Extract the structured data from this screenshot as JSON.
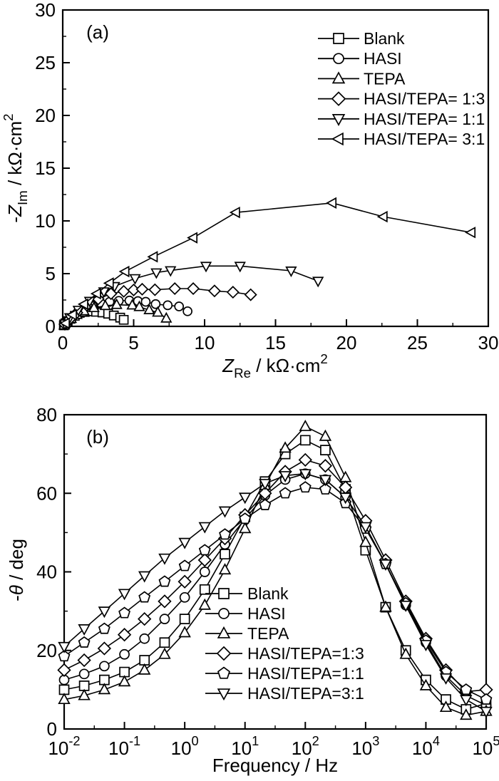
{
  "page": {
    "background": "#ffffff",
    "ink": "#000000"
  },
  "chart_data": [
    {
      "id": "panel-a",
      "type": "scatter",
      "panel_label": "(a)",
      "xlabel_parts": [
        {
          "text": "Z",
          "italic": true
        },
        {
          "text": "Re",
          "script": "sub"
        },
        {
          "text": " / kΩ·cm"
        },
        {
          "text": "2",
          "script": "sup"
        }
      ],
      "ylabel_parts": [
        {
          "text": "-"
        },
        {
          "text": "Z",
          "italic": true
        },
        {
          "text": "Im",
          "script": "sub"
        },
        {
          "text": " / kΩ·cm"
        },
        {
          "text": "2",
          "script": "sup"
        }
      ],
      "x_axis": {
        "scale": "linear",
        "min": 0,
        "max": 30,
        "major_ticks": [
          0,
          5,
          10,
          15,
          20,
          25,
          30
        ],
        "minor_ticks": [
          2.5,
          7.5,
          12.5,
          17.5,
          22.5,
          27.5
        ],
        "tick_labels": [
          "0",
          "5",
          "10",
          "15",
          "20",
          "25",
          "30"
        ]
      },
      "y_axis": {
        "scale": "linear",
        "min": 0,
        "max": 30,
        "major_ticks": [
          0,
          5,
          10,
          15,
          20,
          25,
          30
        ],
        "minor_ticks": [
          2.5,
          7.5,
          12.5,
          17.5,
          22.5,
          27.5
        ],
        "tick_labels": [
          "0",
          "5",
          "10",
          "15",
          "20",
          "25",
          "30"
        ]
      },
      "legend": [
        {
          "label": "Blank",
          "marker": "square"
        },
        {
          "label": "HASI",
          "marker": "circle"
        },
        {
          "label": "TEPA",
          "marker": "triangle-up"
        },
        {
          "label": "HASI/TEPA= 1:3",
          "marker": "diamond"
        },
        {
          "label": "HASI/TEPA= 1:1",
          "marker": "triangle-down"
        },
        {
          "label": "HASI/TEPA= 3:1",
          "marker": "triangle-left"
        }
      ],
      "series": [
        {
          "name": "Blank",
          "marker": "square",
          "points": [
            [
              0.08,
              0.1
            ],
            [
              0.2,
              0.3
            ],
            [
              0.35,
              0.5
            ],
            [
              0.55,
              0.72
            ],
            [
              0.85,
              1.0
            ],
            [
              1.2,
              1.28
            ],
            [
              1.55,
              1.37
            ],
            [
              1.95,
              1.42
            ],
            [
              2.35,
              1.38
            ],
            [
              2.8,
              1.32
            ],
            [
              3.2,
              1.2
            ],
            [
              3.6,
              1.03
            ],
            [
              4.05,
              0.83
            ],
            [
              4.3,
              0.62
            ]
          ]
        },
        {
          "name": "HASI",
          "marker": "circle",
          "points": [
            [
              0.1,
              0.12
            ],
            [
              0.3,
              0.45
            ],
            [
              0.6,
              0.85
            ],
            [
              1.0,
              1.25
            ],
            [
              1.5,
              1.62
            ],
            [
              2.1,
              1.95
            ],
            [
              2.7,
              2.18
            ],
            [
              3.3,
              2.32
            ],
            [
              3.95,
              2.42
            ],
            [
              4.7,
              2.45
            ],
            [
              5.3,
              2.4
            ],
            [
              5.85,
              2.33
            ],
            [
              6.55,
              2.11
            ],
            [
              7.4,
              2.0
            ],
            [
              8.2,
              1.89
            ],
            [
              8.8,
              1.43
            ]
          ]
        },
        {
          "name": "TEPA",
          "marker": "triangle-up",
          "points": [
            [
              0.1,
              0.1
            ],
            [
              0.3,
              0.38
            ],
            [
              0.6,
              0.72
            ],
            [
              1.0,
              1.1
            ],
            [
              1.5,
              1.45
            ],
            [
              2.2,
              1.75
            ],
            [
              3.0,
              1.95
            ],
            [
              3.8,
              2.05
            ],
            [
              4.9,
              2.0
            ],
            [
              5.4,
              1.85
            ],
            [
              6.1,
              1.55
            ],
            [
              6.7,
              1.32
            ],
            [
              7.3,
              0.76
            ]
          ]
        },
        {
          "name": "HASI/TEPA= 1:3",
          "marker": "diamond",
          "points": [
            [
              0.15,
              0.2
            ],
            [
              0.5,
              0.7
            ],
            [
              1.0,
              1.3
            ],
            [
              1.7,
              2.0
            ],
            [
              2.5,
              2.6
            ],
            [
              3.4,
              3.1
            ],
            [
              4.3,
              3.32
            ],
            [
              5.0,
              3.45
            ],
            [
              5.6,
              3.52
            ],
            [
              6.5,
              3.47
            ],
            [
              7.9,
              3.58
            ],
            [
              9.2,
              3.58
            ],
            [
              10.7,
              3.36
            ],
            [
              12.0,
              3.24
            ],
            [
              13.25,
              3.0
            ]
          ]
        },
        {
          "name": "HASI/TEPA= 1:1",
          "marker": "triangle-down",
          "points": [
            [
              0.15,
              0.25
            ],
            [
              0.5,
              0.85
            ],
            [
              1.1,
              1.55
            ],
            [
              1.9,
              2.4
            ],
            [
              2.9,
              3.3
            ],
            [
              3.65,
              3.8
            ],
            [
              5.1,
              4.55
            ],
            [
              6.6,
              5.1
            ],
            [
              7.6,
              5.3
            ],
            [
              10.1,
              5.72
            ],
            [
              12.5,
              5.72
            ],
            [
              16.1,
              5.27
            ],
            [
              18.0,
              4.3
            ]
          ]
        },
        {
          "name": "HASI/TEPA= 3:1",
          "marker": "triangle-left",
          "points": [
            [
              0.2,
              0.3
            ],
            [
              0.7,
              1.1
            ],
            [
              1.5,
              2.1
            ],
            [
              2.4,
              3.1
            ],
            [
              3.3,
              4.1
            ],
            [
              4.4,
              5.2
            ],
            [
              6.4,
              6.6
            ],
            [
              9.2,
              8.4
            ],
            [
              12.2,
              10.8
            ],
            [
              19.0,
              11.7
            ],
            [
              22.6,
              10.4
            ],
            [
              28.8,
              8.9
            ]
          ]
        }
      ]
    },
    {
      "id": "panel-b",
      "type": "line",
      "panel_label": "(b)",
      "xlabel_parts": [
        {
          "text": "Frequency / Hz"
        }
      ],
      "ylabel_parts": [
        {
          "text": "-"
        },
        {
          "text": "θ",
          "italic": true
        },
        {
          "text": " / deg"
        }
      ],
      "x_axis": {
        "scale": "log",
        "min_exp": -2,
        "max_exp": 5,
        "tick_labels": [
          {
            "base": "10",
            "exp": "-2"
          },
          {
            "base": "10",
            "exp": "-1"
          },
          {
            "base": "10",
            "exp": "0"
          },
          {
            "base": "10",
            "exp": "1"
          },
          {
            "base": "10",
            "exp": "2"
          },
          {
            "base": "10",
            "exp": "3"
          },
          {
            "base": "10",
            "exp": "4"
          },
          {
            "base": "10",
            "exp": "5"
          }
        ]
      },
      "y_axis": {
        "scale": "linear",
        "min": 0,
        "max": 80,
        "major_ticks": [
          0,
          20,
          40,
          60,
          80
        ],
        "minor_ticks": [
          10,
          30,
          50,
          70
        ],
        "tick_labels": [
          "0",
          "20",
          "40",
          "60",
          "80"
        ]
      },
      "legend": [
        {
          "label": "Blank",
          "marker": "square"
        },
        {
          "label": "HASI",
          "marker": "circle"
        },
        {
          "label": "TEPA",
          "marker": "triangle-up"
        },
        {
          "label": "HASI/TEPA=1:3",
          "marker": "diamond"
        },
        {
          "label": "HASI/TEPA=1:1",
          "marker": "pentagon"
        },
        {
          "label": "HASI/TEPA=3:1",
          "marker": "triangle-down"
        }
      ],
      "frequencies_hz": [
        0.01,
        0.0215,
        0.0464,
        0.1,
        0.215,
        0.464,
        1,
        2.15,
        4.64,
        10,
        21.5,
        46.4,
        100,
        215,
        464,
        1000,
        2150,
        4640,
        10000,
        21500,
        46400,
        100000
      ],
      "series": [
        {
          "name": "Blank",
          "marker": "square",
          "phase_deg": [
            10,
            11,
            12.5,
            14.5,
            17.5,
            22,
            28,
            35.5,
            44.5,
            54,
            63,
            70,
            73.5,
            71,
            61,
            45.5,
            31,
            20,
            12.5,
            7.5,
            5,
            6.5
          ]
        },
        {
          "name": "HASI",
          "marker": "circle",
          "phase_deg": [
            12.5,
            14,
            16,
            19,
            23,
            28,
            33.5,
            40,
            47,
            53.5,
            59.5,
            63.5,
            65,
            63.5,
            59,
            51.5,
            42,
            31.5,
            22,
            13.5,
            8.5,
            6
          ]
        },
        {
          "name": "TEPA",
          "marker": "triangle-up",
          "phase_deg": [
            7.5,
            8.5,
            10,
            12,
            15,
            19,
            24.5,
            31.5,
            40.5,
            51,
            62,
            71.5,
            77,
            74.5,
            64,
            47.5,
            31,
            19,
            11,
            5.5,
            3.5,
            4.5
          ]
        },
        {
          "name": "HASI/TEPA=1:3",
          "marker": "diamond",
          "phase_deg": [
            15,
            17.5,
            20.5,
            24,
            28,
            32.5,
            37.5,
            43,
            48.5,
            54.5,
            60,
            65.5,
            68.5,
            67,
            61.5,
            53,
            43,
            32.5,
            23,
            15,
            9.5,
            10
          ]
        },
        {
          "name": "HASI/TEPA=1:1",
          "marker": "pentagon",
          "phase_deg": [
            18.5,
            22,
            25.5,
            29.5,
            33.5,
            37.5,
            41.5,
            45.5,
            49.5,
            53.5,
            57,
            60,
            61.5,
            61,
            57.5,
            51,
            42,
            32,
            22.5,
            14.5,
            10,
            7.5
          ]
        },
        {
          "name": "HASI/TEPA=3:1",
          "marker": "triangle-down",
          "phase_deg": [
            21,
            25.5,
            30,
            34.5,
            39,
            43.5,
            47.5,
            51.5,
            55.5,
            59,
            62.5,
            64.5,
            65,
            63.5,
            59,
            51.5,
            42,
            31.5,
            21.5,
            13,
            7.5,
            4.5
          ]
        }
      ]
    }
  ]
}
